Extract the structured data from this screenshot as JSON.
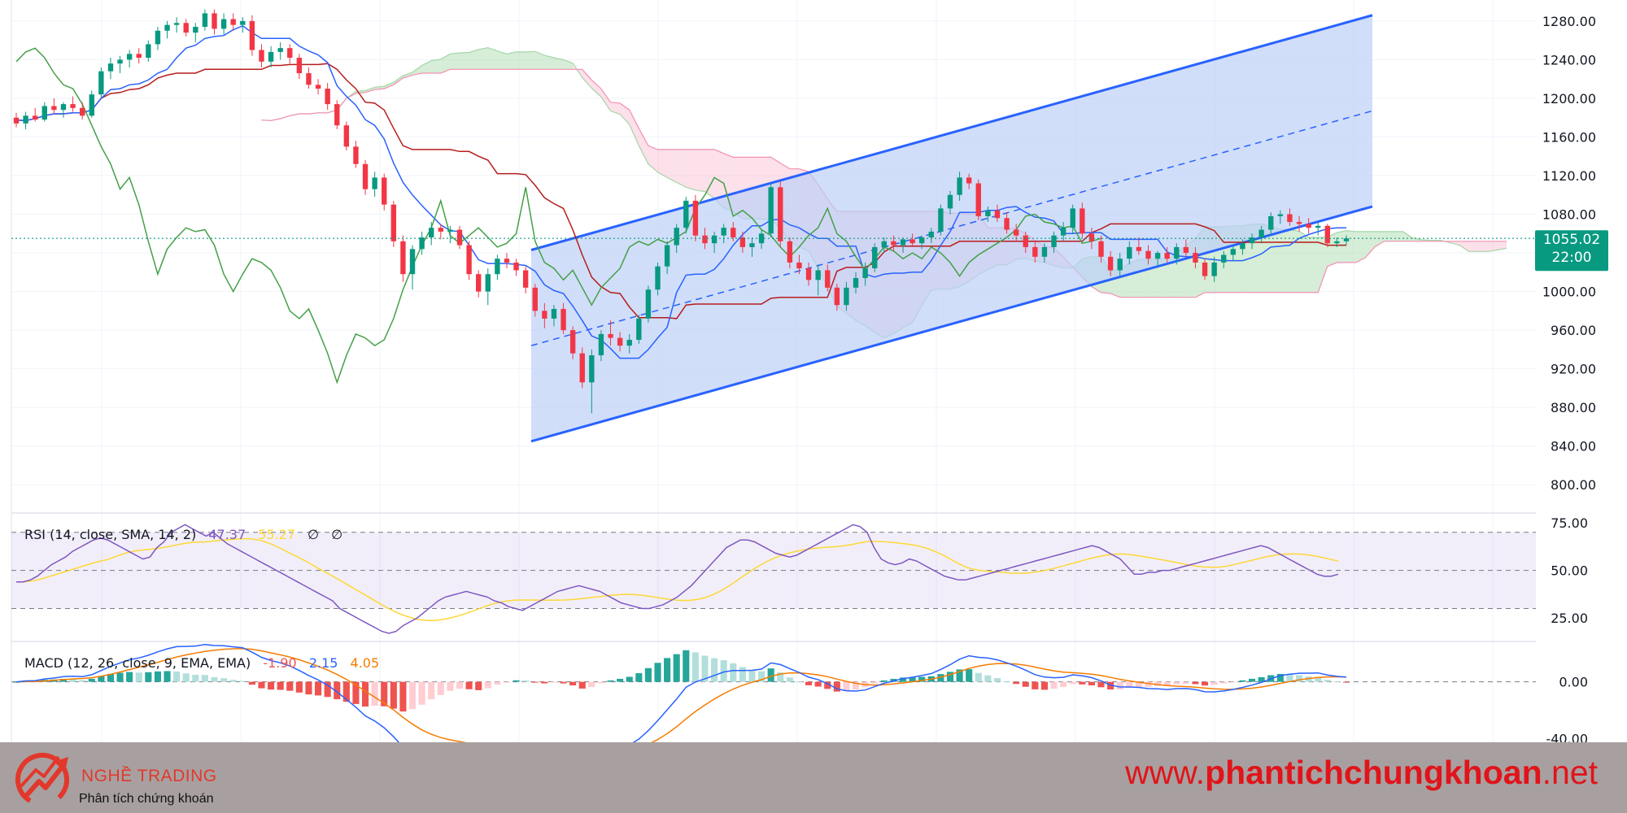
{
  "chart_data": {
    "type": "candlestick",
    "symbol_note": "",
    "price_axis": {
      "ylim": [
        780,
        1290
      ],
      "ticks": [
        "1280.00",
        "1240.00",
        "1200.00",
        "1160.00",
        "1120.00",
        "1080.00",
        "1040.00",
        "1000.00",
        "960.00",
        "920.00",
        "880.00",
        "840.00",
        "800.00"
      ]
    },
    "last_price": {
      "value": "1055.02",
      "countdown": "22:00",
      "color": "#089981"
    },
    "candles": [
      [
        1180,
        1185,
        1170,
        1174
      ],
      [
        1174,
        1186,
        1168,
        1182
      ],
      [
        1182,
        1190,
        1176,
        1178
      ],
      [
        1178,
        1196,
        1176,
        1192
      ],
      [
        1192,
        1200,
        1184,
        1188
      ],
      [
        1188,
        1196,
        1180,
        1194
      ],
      [
        1194,
        1202,
        1186,
        1190
      ],
      [
        1190,
        1196,
        1178,
        1182
      ],
      [
        1182,
        1208,
        1180,
        1204
      ],
      [
        1204,
        1232,
        1200,
        1228
      ],
      [
        1228,
        1242,
        1220,
        1236
      ],
      [
        1236,
        1244,
        1226,
        1240
      ],
      [
        1240,
        1250,
        1232,
        1246
      ],
      [
        1246,
        1252,
        1236,
        1242
      ],
      [
        1242,
        1260,
        1238,
        1256
      ],
      [
        1256,
        1274,
        1250,
        1270
      ],
      [
        1270,
        1280,
        1262,
        1276
      ],
      [
        1276,
        1284,
        1268,
        1278
      ],
      [
        1278,
        1282,
        1264,
        1268
      ],
      [
        1268,
        1278,
        1258,
        1274
      ],
      [
        1274,
        1292,
        1270,
        1288
      ],
      [
        1288,
        1292,
        1266,
        1272
      ],
      [
        1272,
        1288,
        1266,
        1282
      ],
      [
        1282,
        1288,
        1270,
        1276
      ],
      [
        1276,
        1284,
        1268,
        1280
      ],
      [
        1280,
        1286,
        1244,
        1250
      ],
      [
        1250,
        1256,
        1232,
        1238
      ],
      [
        1238,
        1254,
        1232,
        1248
      ],
      [
        1248,
        1258,
        1240,
        1252
      ],
      [
        1252,
        1256,
        1236,
        1242
      ],
      [
        1242,
        1246,
        1220,
        1226
      ],
      [
        1226,
        1232,
        1210,
        1214
      ],
      [
        1214,
        1220,
        1204,
        1210
      ],
      [
        1210,
        1216,
        1188,
        1194
      ],
      [
        1194,
        1198,
        1168,
        1172
      ],
      [
        1172,
        1176,
        1146,
        1150
      ],
      [
        1150,
        1156,
        1128,
        1132
      ],
      [
        1132,
        1136,
        1100,
        1106
      ],
      [
        1106,
        1124,
        1098,
        1118
      ],
      [
        1118,
        1122,
        1084,
        1090
      ],
      [
        1090,
        1094,
        1046,
        1052
      ],
      [
        1052,
        1058,
        1010,
        1018
      ],
      [
        1018,
        1048,
        1002,
        1044
      ],
      [
        1044,
        1062,
        1038,
        1056
      ],
      [
        1056,
        1072,
        1048,
        1066
      ],
      [
        1066,
        1070,
        1054,
        1062
      ],
      [
        1062,
        1068,
        1050,
        1064
      ],
      [
        1064,
        1068,
        1044,
        1048
      ],
      [
        1048,
        1052,
        1012,
        1018
      ],
      [
        1018,
        1022,
        994,
        1000
      ],
      [
        1000,
        1024,
        986,
        1018
      ],
      [
        1018,
        1038,
        1012,
        1034
      ],
      [
        1034,
        1040,
        1024,
        1030
      ],
      [
        1030,
        1034,
        1016,
        1022
      ],
      [
        1022,
        1026,
        998,
        1004
      ],
      [
        1004,
        1008,
        974,
        980
      ],
      [
        980,
        988,
        962,
        972
      ],
      [
        972,
        986,
        964,
        982
      ],
      [
        982,
        988,
        956,
        960
      ],
      [
        960,
        964,
        930,
        936
      ],
      [
        936,
        942,
        900,
        906
      ],
      [
        906,
        940,
        874,
        934
      ],
      [
        934,
        960,
        928,
        956
      ],
      [
        956,
        970,
        944,
        952
      ],
      [
        952,
        958,
        938,
        944
      ],
      [
        944,
        956,
        936,
        950
      ],
      [
        950,
        976,
        946,
        972
      ],
      [
        972,
        1006,
        968,
        1002
      ],
      [
        1002,
        1030,
        996,
        1026
      ],
      [
        1026,
        1052,
        1018,
        1048
      ],
      [
        1048,
        1070,
        1040,
        1066
      ],
      [
        1066,
        1098,
        1060,
        1094
      ],
      [
        1094,
        1100,
        1052,
        1058
      ],
      [
        1058,
        1066,
        1044,
        1050
      ],
      [
        1050,
        1062,
        1040,
        1058
      ],
      [
        1058,
        1070,
        1050,
        1066
      ],
      [
        1066,
        1072,
        1052,
        1056
      ],
      [
        1056,
        1062,
        1040,
        1046
      ],
      [
        1046,
        1056,
        1036,
        1050
      ],
      [
        1050,
        1064,
        1044,
        1060
      ],
      [
        1060,
        1112,
        1056,
        1108
      ],
      [
        1108,
        1114,
        1046,
        1052
      ],
      [
        1052,
        1056,
        1024,
        1030
      ],
      [
        1030,
        1038,
        1018,
        1024
      ],
      [
        1024,
        1030,
        1006,
        1012
      ],
      [
        1012,
        1028,
        996,
        1022
      ],
      [
        1022,
        1028,
        1000,
        1004
      ],
      [
        1004,
        1008,
        980,
        986
      ],
      [
        986,
        1010,
        980,
        1004
      ],
      [
        1004,
        1020,
        998,
        1014
      ],
      [
        1014,
        1030,
        1006,
        1024
      ],
      [
        1024,
        1050,
        1020,
        1046
      ],
      [
        1046,
        1056,
        1040,
        1052
      ],
      [
        1052,
        1058,
        1042,
        1048
      ],
      [
        1048,
        1056,
        1040,
        1054
      ],
      [
        1054,
        1060,
        1046,
        1050
      ],
      [
        1050,
        1058,
        1044,
        1056
      ],
      [
        1056,
        1066,
        1050,
        1062
      ],
      [
        1062,
        1090,
        1058,
        1086
      ],
      [
        1086,
        1104,
        1080,
        1100
      ],
      [
        1100,
        1124,
        1094,
        1118
      ],
      [
        1118,
        1122,
        1106,
        1112
      ],
      [
        1112,
        1116,
        1074,
        1078
      ],
      [
        1078,
        1088,
        1072,
        1084
      ],
      [
        1084,
        1090,
        1072,
        1076
      ],
      [
        1076,
        1082,
        1060,
        1064
      ],
      [
        1064,
        1070,
        1052,
        1058
      ],
      [
        1058,
        1062,
        1040,
        1046
      ],
      [
        1046,
        1052,
        1030,
        1036
      ],
      [
        1036,
        1050,
        1030,
        1046
      ],
      [
        1046,
        1062,
        1040,
        1058
      ],
      [
        1058,
        1072,
        1052,
        1066
      ],
      [
        1066,
        1090,
        1060,
        1086
      ],
      [
        1086,
        1092,
        1056,
        1060
      ],
      [
        1060,
        1066,
        1044,
        1052
      ],
      [
        1052,
        1058,
        1030,
        1036
      ],
      [
        1036,
        1042,
        1016,
        1022
      ],
      [
        1022,
        1040,
        1016,
        1034
      ],
      [
        1034,
        1052,
        1028,
        1046
      ],
      [
        1046,
        1056,
        1038,
        1042
      ],
      [
        1042,
        1048,
        1028,
        1034
      ],
      [
        1034,
        1042,
        1026,
        1040
      ],
      [
        1040,
        1046,
        1030,
        1034
      ],
      [
        1034,
        1050,
        1028,
        1046
      ],
      [
        1046,
        1054,
        1036,
        1040
      ],
      [
        1040,
        1046,
        1024,
        1030
      ],
      [
        1030,
        1034,
        1012,
        1016
      ],
      [
        1016,
        1036,
        1010,
        1030
      ],
      [
        1030,
        1042,
        1024,
        1038
      ],
      [
        1038,
        1048,
        1032,
        1044
      ],
      [
        1044,
        1054,
        1038,
        1050
      ],
      [
        1050,
        1060,
        1044,
        1056
      ],
      [
        1056,
        1068,
        1050,
        1064
      ],
      [
        1064,
        1082,
        1058,
        1078
      ],
      [
        1078,
        1084,
        1070,
        1080
      ],
      [
        1080,
        1086,
        1068,
        1072
      ],
      [
        1072,
        1078,
        1062,
        1070
      ],
      [
        1070,
        1076,
        1060,
        1066
      ],
      [
        1066,
        1072,
        1058,
        1068
      ],
      [
        1068,
        1070,
        1046,
        1050
      ],
      [
        1050,
        1056,
        1046,
        1052
      ],
      [
        1052,
        1058,
        1048,
        1055
      ]
    ],
    "channel": {
      "upper": [
        [
          1.0,
          1043
        ],
        [
          101.0,
          1286
        ]
      ],
      "lower": [
        [
          1.0,
          845
        ],
        [
          101.0,
          1088
        ]
      ],
      "mid": [
        [
          1.0,
          944
        ],
        [
          101.0,
          1187
        ]
      ],
      "fill": "#bcd0f7"
    },
    "ichimoku": {
      "tenkan_color": "#2962ff",
      "kijun_color": "#b71c1c",
      "chikou_color": "#43a047"
    },
    "rsi": {
      "label": "RSI (14, close, SMA, 14, 2)",
      "value": "47.37",
      "sma": "55.27",
      "extra1": "∅",
      "extra2": "∅",
      "ticks": [
        "75.00",
        "50.00",
        "25.00"
      ],
      "ylim": [
        14,
        78
      ],
      "upper_band": 70,
      "lower_band": 30,
      "mid_band": 50,
      "values": [
        44,
        44,
        45,
        47,
        50,
        53,
        55,
        57,
        60,
        62,
        64,
        66,
        67,
        66,
        64,
        62,
        60,
        58,
        56,
        57,
        62,
        65,
        70,
        72,
        74,
        72,
        70,
        68,
        70,
        67,
        64,
        62,
        60,
        58,
        56,
        54,
        52,
        50,
        48,
        46,
        44,
        42,
        40,
        38,
        36,
        34,
        30,
        28,
        26,
        24,
        22,
        20,
        18,
        17,
        18,
        21,
        23,
        25,
        28,
        31,
        34,
        36,
        37,
        38,
        39,
        38,
        37,
        36,
        34,
        33,
        31,
        30,
        29,
        31,
        33,
        35,
        37,
        39,
        40,
        41,
        42,
        41,
        40,
        39,
        37,
        35,
        33,
        32,
        31,
        30,
        30,
        31,
        32,
        34,
        36,
        39,
        42,
        46,
        50,
        54,
        58,
        62,
        64,
        66,
        66,
        65,
        63,
        61,
        59,
        58,
        57,
        58,
        60,
        62,
        64,
        66,
        68,
        70,
        72,
        74,
        73,
        70,
        62,
        56,
        54,
        53,
        54,
        56,
        55,
        53,
        51,
        49,
        47,
        46,
        45,
        45,
        46,
        47,
        48,
        49,
        50,
        51,
        52,
        53,
        54,
        55,
        56,
        57,
        58,
        59,
        60,
        61,
        62,
        63,
        62,
        60,
        58,
        56,
        52,
        48,
        48,
        49,
        49,
        50,
        50,
        51,
        52,
        53,
        54,
        55,
        56,
        57,
        58,
        59,
        60,
        61,
        62,
        63,
        62,
        60,
        58,
        56,
        54,
        52,
        50,
        48,
        47,
        47,
        48
      ]
    },
    "macd": {
      "label": "MACD (12, 26, close, 9, EMA, EMA)",
      "hist_value": "-1.90",
      "macd_value": "2.15",
      "signal_value": "4.05",
      "ticks": [
        "0.00",
        "-40.00"
      ],
      "ylim": [
        -42,
        25
      ],
      "macd_color": "#2962ff",
      "signal_color": "#f57c00",
      "hist_pos_strong": "#26a69a",
      "hist_pos_weak": "#b2dfdb",
      "hist_neg_strong": "#ef5350",
      "hist_neg_weak": "#ffcdd2"
    }
  },
  "footer": {
    "brand_name": "NGHỀ TRADING",
    "brand_tagline": "Phân tích chứng khoán",
    "url_prefix": "www.",
    "url_bold": "phantichchungkhoan",
    "url_suffix": ".net",
    "logo_color": "#e2382c"
  }
}
